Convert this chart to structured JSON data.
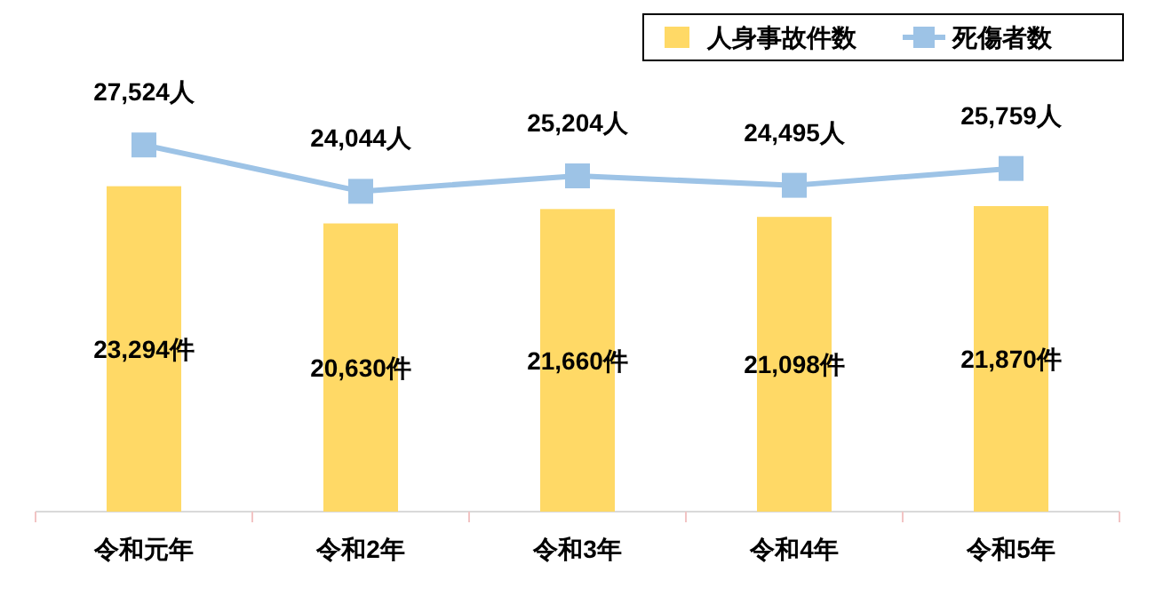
{
  "chart_data": {
    "type": "bar",
    "categories": [
      "令和元年",
      "令和2年",
      "令和3年",
      "令和4年",
      "令和5年"
    ],
    "series": [
      {
        "name": "人身事故件数",
        "color": "#ffd966",
        "values": [
          23294,
          20630,
          21660,
          21098,
          21870
        ],
        "value_labels": [
          "23,294件",
          "20,630件",
          "21,660件",
          "21,098件",
          "21,870件"
        ]
      },
      {
        "name": "死傷者数",
        "type": "line",
        "axis": "y2",
        "color": "#9dc3e6",
        "values": [
          27524,
          24044,
          25204,
          24495,
          25759
        ],
        "value_labels": [
          "27,524人",
          "24,044人",
          "25,204人",
          "24,495人",
          "25,759人"
        ]
      }
    ],
    "marker": "square",
    "legend": "top right"
  }
}
